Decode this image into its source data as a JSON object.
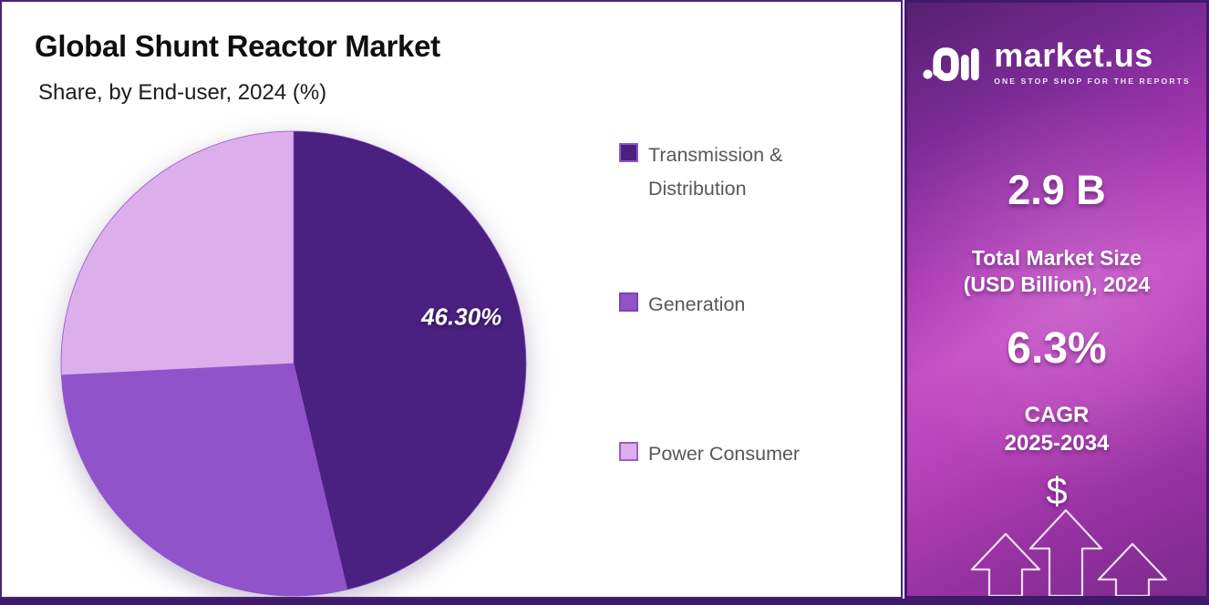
{
  "theme": {
    "panel-border": "#4a2579",
    "accent-dark": "#3f1a66",
    "legend-text": "#58585a"
  },
  "header": {
    "title": "Global Shunt Reactor Market",
    "subtitle": "Share, by End-user, 2024 (%)"
  },
  "chart_data": {
    "type": "pie",
    "title": "Global Shunt Reactor Market",
    "subtitle": "Share, by End-user, 2024 (%)",
    "unit": "%",
    "start_angle": "12-oclock",
    "direction": "clockwise",
    "categories": [
      "Transmission & Distribution",
      "Generation",
      "Power Consumer"
    ],
    "values": [
      46.3,
      27.9,
      25.8
    ],
    "displayed_labels": [
      "46.30%",
      "",
      ""
    ],
    "colors": [
      "#4a2080",
      "#9153ca",
      "#dcaeec"
    ],
    "rim_color": "#9254cb",
    "legend_position": "right-of-chart"
  },
  "legend": {
    "items": [
      {
        "label": "Transmission & Distribution",
        "color": "#4a2080",
        "border": "#8f58c6"
      },
      {
        "label": "Generation",
        "color": "#9153ca",
        "border": "#7b42b8"
      },
      {
        "label": "Power Consumer",
        "color": "#dcaeec",
        "border": "#a05ec0"
      }
    ]
  },
  "sidebar": {
    "brand": {
      "name": "market.us",
      "tagline": "ONE STOP SHOP FOR THE REPORTS"
    },
    "market_size": {
      "value": "2.9 B",
      "label_line1": "Total Market Size",
      "label_line2": "(USD Billion), 2024"
    },
    "cagr": {
      "value": "6.3%",
      "label_line1": "CAGR",
      "label_line2": "2025-2034"
    },
    "dollar_icon": "$"
  }
}
